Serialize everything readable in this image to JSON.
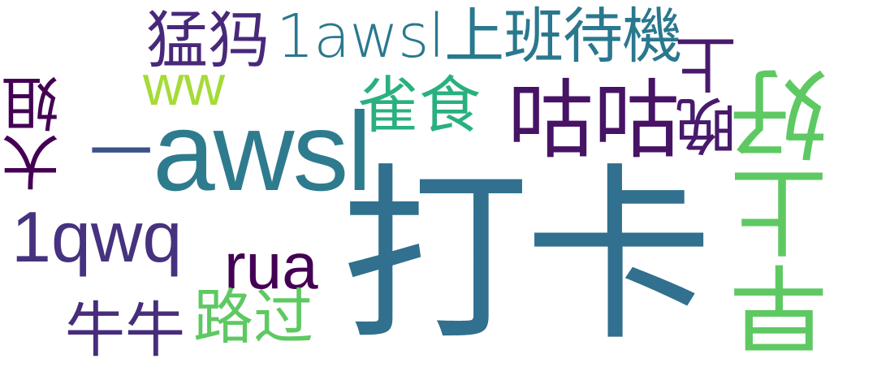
{
  "word_cloud": {
    "words": [
      {
        "id": "daka",
        "text": "打卡",
        "color": "#31708e"
      },
      {
        "id": "awsl",
        "text": "awsl",
        "color": "#2f7b8e"
      },
      {
        "id": "dash",
        "text": "一",
        "color": "#3b528b"
      },
      {
        "id": "1awsl",
        "text": "1awsl上班待機",
        "color": "#2a788e"
      },
      {
        "id": "mengmai",
        "text": "猛犸",
        "color": "#482979"
      },
      {
        "id": "ww",
        "text": "ww",
        "color": "#a5db36"
      },
      {
        "id": "queshi",
        "text": "雀食",
        "color": "#2ab07f"
      },
      {
        "id": "gugu",
        "text": "咕咕",
        "color": "#471365"
      },
      {
        "id": "dajie",
        "text": "大姐",
        "color": "#440154"
      },
      {
        "id": "1qwq",
        "text": "1qwq",
        "color": "#46327e"
      },
      {
        "id": "rua",
        "text": "rua",
        "color": "#440154"
      },
      {
        "id": "niuniu",
        "text": "牛牛",
        "color": "#472d7b"
      },
      {
        "id": "luguo",
        "text": "路过",
        "color": "#5ec962"
      },
      {
        "id": "wanshang",
        "text": "晚上",
        "color": "#481a6c"
      },
      {
        "id": "zaoshanghao",
        "text": "早上好",
        "color": "#5ec962"
      }
    ]
  }
}
